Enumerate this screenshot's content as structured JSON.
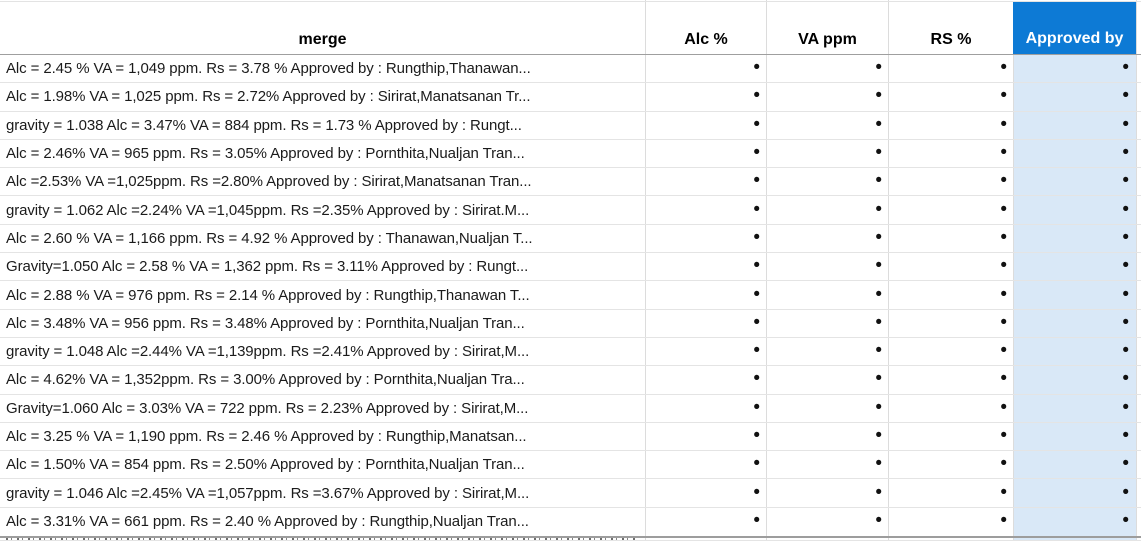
{
  "table": {
    "columns": [
      {
        "key": "merge",
        "label": "merge",
        "selected": false
      },
      {
        "key": "alc",
        "label": "Alc %",
        "selected": false
      },
      {
        "key": "va",
        "label": "VA ppm",
        "selected": false
      },
      {
        "key": "rs",
        "label": "RS %",
        "selected": false
      },
      {
        "key": "approved",
        "label": "Approved by",
        "selected": true
      }
    ],
    "bullet_glyph": "•",
    "rows": [
      {
        "merge": "Alc = 2.45 % VA = 1,049 ppm. Rs = 3.78 % Approved by : Rungthip,Thanawan..."
      },
      {
        "merge": "Alc = 1.98% VA = 1,025 ppm. Rs = 2.72% Approved by : Sirirat,Manatsanan Tr..."
      },
      {
        "merge": "gravity = 1.038 Alc = 3.47% VA = 884 ppm. Rs = 1.73 % Approved by : Rungt..."
      },
      {
        "merge": "Alc = 2.46% VA = 965 ppm. Rs = 3.05% Approved by : Pornthita,Nualjan Tran..."
      },
      {
        "merge": "Alc =2.53% VA =1,025ppm. Rs =2.80% Approved by : Sirirat,Manatsanan Tran..."
      },
      {
        "merge": "gravity = 1.062 Alc =2.24% VA =1,045ppm. Rs =2.35% Approved by : Sirirat.M..."
      },
      {
        "merge": "Alc = 2.60 % VA = 1,166 ppm. Rs = 4.92 % Approved by : Thanawan,Nualjan T..."
      },
      {
        "merge": "Gravity=1.050 Alc = 2.58 % VA = 1,362 ppm. Rs = 3.11% Approved by : Rungt..."
      },
      {
        "merge": "Alc = 2.88 % VA = 976 ppm. Rs = 2.14 % Approved by : Rungthip,Thanawan T..."
      },
      {
        "merge": "Alc = 3.48% VA = 956 ppm. Rs = 3.48% Approved by : Pornthita,Nualjan Tran..."
      },
      {
        "merge": "gravity = 1.048 Alc =2.44% VA =1,139ppm. Rs =2.41% Approved by : Sirirat,M..."
      },
      {
        "merge": "Alc = 4.62% VA = 1,352ppm. Rs = 3.00% Approved by : Pornthita,Nualjan Tra..."
      },
      {
        "merge": "Gravity=1.060 Alc = 3.03% VA = 722 ppm. Rs = 2.23% Approved by : Sirirat,M..."
      },
      {
        "merge": "Alc = 3.25 % VA = 1,190 ppm. Rs = 2.46 % Approved by : Rungthip,Manatsan..."
      },
      {
        "merge": "Alc = 1.50% VA = 854 ppm. Rs = 2.50% Approved by : Pornthita,Nualjan Tran..."
      },
      {
        "merge": "gravity = 1.046 Alc =2.45% VA =1,057ppm. Rs =3.67% Approved by : Sirirat,M..."
      },
      {
        "merge": "Alc = 3.31% VA = 661 ppm. Rs = 2.40 % Approved by : Rungthip,Nualjan Tran..."
      }
    ]
  },
  "colors": {
    "selected_header_fill": "#0d7ad5",
    "selected_header_text": "#ffffff",
    "selected_column_fill": "#d9e8f7",
    "gridline": "#dcdcdc",
    "text": "#1b1b1b"
  }
}
